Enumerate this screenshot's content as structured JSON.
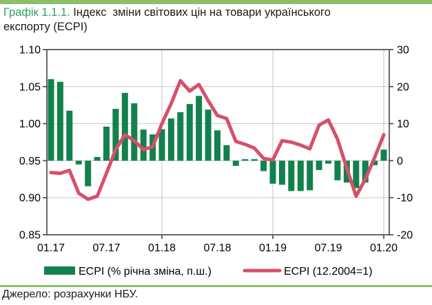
{
  "header": {
    "figure_label": "Графік 1.1.1.",
    "title_rest": " Індекс  зміни світових цін на товари українського\nекспорту (ECPI)"
  },
  "footer": {
    "source": "Джерело: розрахунки НБУ."
  },
  "colors": {
    "bar": "#12814E",
    "line": "#D6506A",
    "accent_strip": "#8DBF69",
    "figure_label": "#2E9E62",
    "grid": "#C5C5C5",
    "axis": "#4D4D4D",
    "text": "#000000"
  },
  "chart_data": {
    "type": "bar+line combo",
    "x": [
      "01.17",
      "02.17",
      "03.17",
      "04.17",
      "05.17",
      "06.17",
      "07.17",
      "08.17",
      "09.17",
      "10.17",
      "11.17",
      "12.17",
      "01.18",
      "02.18",
      "03.18",
      "04.18",
      "05.18",
      "06.18",
      "07.18",
      "08.18",
      "09.18",
      "10.18",
      "11.18",
      "12.18",
      "01.19",
      "02.19",
      "03.19",
      "04.19",
      "05.19",
      "06.19",
      "07.19",
      "08.19",
      "09.19",
      "10.19",
      "11.19",
      "12.19",
      "01.20"
    ],
    "x_tick_indices": [
      0,
      6,
      12,
      18,
      24,
      30,
      36
    ],
    "x_tick_labels": [
      "01.17",
      "07.17",
      "01.18",
      "07.18",
      "01.19",
      "07.19",
      "01.20"
    ],
    "x_gridline_indices": [
      12,
      24,
      36
    ],
    "series": [
      {
        "name": "ECPI (% річна зміна, п.ш.)",
        "type": "bar",
        "axis": "right",
        "values": [
          22.0,
          21.3,
          13.5,
          -1.0,
          -6.9,
          1.0,
          9.2,
          14.0,
          18.3,
          15.5,
          8.4,
          7.1,
          8.5,
          11.4,
          13.1,
          15.3,
          17.5,
          13.8,
          8.2,
          4.2,
          -1.4,
          0.4,
          0.4,
          -2.8,
          -6.2,
          -6.5,
          -8.2,
          -8.2,
          -8.0,
          -2.5,
          -0.8,
          -5.3,
          -5.9,
          -7.4,
          -5.9,
          -1.2,
          3.0
        ]
      },
      {
        "name": "ECPI (12.2004=1)",
        "type": "line",
        "axis": "left",
        "values": [
          0.934,
          0.933,
          0.937,
          0.906,
          0.898,
          0.902,
          0.933,
          0.965,
          0.985,
          0.977,
          0.965,
          0.969,
          1.0,
          1.027,
          1.058,
          1.044,
          1.053,
          1.031,
          1.011,
          1.007,
          0.976,
          0.972,
          0.967,
          0.953,
          0.951,
          0.977,
          0.975,
          0.971,
          0.966,
          0.998,
          1.005,
          0.979,
          0.94,
          0.902,
          0.925,
          0.954,
          0.985
        ]
      }
    ],
    "left_axis": {
      "min": 0.85,
      "max": 1.1,
      "ticks": [
        0.85,
        0.9,
        0.95,
        1.0,
        1.05,
        1.1
      ],
      "tick_labels": [
        "0.85",
        "0.90",
        "0.95",
        "1.00",
        "1.05",
        "1.10"
      ],
      "gridlines": [
        0.9,
        0.95,
        1.0,
        1.05
      ]
    },
    "right_axis": {
      "min": -20,
      "max": 30,
      "ticks": [
        -20,
        -10,
        0,
        10,
        20,
        30
      ],
      "tick_labels": [
        "-20",
        "-10",
        "0",
        "10",
        "20",
        "30"
      ]
    },
    "grid": true,
    "legend_position": "bottom"
  }
}
